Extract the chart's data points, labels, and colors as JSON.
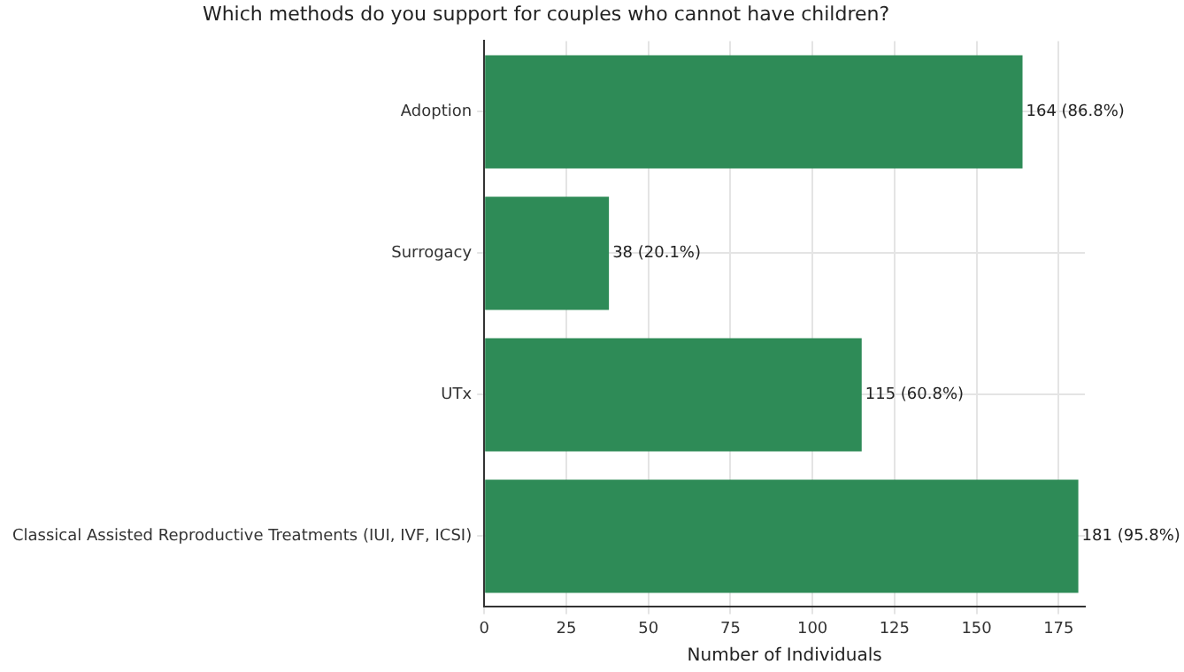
{
  "chart_data": {
    "type": "bar",
    "orientation": "horizontal",
    "title": "Which methods do you support for couples who cannot have children?",
    "xlabel": "Number of Individuals",
    "categories": [
      "Adoption",
      "Surrogacy",
      "UTx",
      "Classical Assisted Reproductive Treatments (IUI, IVF, ICSI)"
    ],
    "values": [
      164,
      38,
      115,
      181
    ],
    "color": "#2e8b57",
    "value_labels": [
      "164 (86.8%)",
      "38 (20.1%)",
      "115 (60.8%)",
      "181 (95.8%)"
    ],
    "xlim": [
      0,
      183
    ],
    "xticks": [
      0,
      25,
      50,
      75,
      100,
      125,
      150,
      175
    ],
    "grid": true
  }
}
